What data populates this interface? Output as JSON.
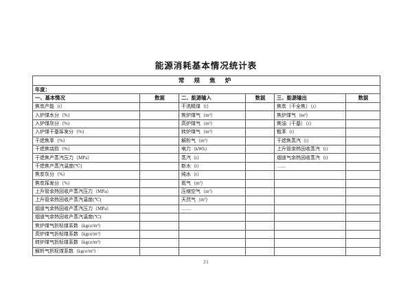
{
  "page": {
    "title": "能源消耗基本情况统计表",
    "page_number": "31"
  },
  "table": {
    "header": "常 规 焦 炉",
    "year_label": "年度：",
    "columns": [
      "一、基本情况",
      "数据",
      "二、能源输入",
      "数据",
      "三、能源输出",
      "数据"
    ],
    "rows": [
      [
        "焦炭产能（t）",
        "",
        "干洗精煤（t）",
        "",
        "焦炭（干全焦）（t）",
        ""
      ],
      [
        "入炉煤水分（%）",
        "",
        "焦炉煤气（m³）",
        "",
        "焦炉煤气（m³）",
        ""
      ],
      [
        "入炉煤灰分（%）",
        "",
        "高炉煤气（m³）",
        "",
        "焦油（干基）（t）",
        ""
      ],
      [
        "入炉煤干基挥发分（%）",
        "",
        "转炉煤气（m³）",
        "",
        "粗苯（t）",
        ""
      ],
      [
        "干熄焦率（%）",
        "",
        "解析气（m³）",
        "",
        "干熄焦蒸汽（t）",
        ""
      ],
      [
        "干熄焦烧损（%）",
        "",
        "电力（kWh）",
        "",
        "上升管余热回收蒸汽（t）",
        ""
      ],
      [
        "干熄焦产蒸汽压力（MPa）",
        "",
        "蒸汽（t）",
        "",
        "烟道气余热回收蒸汽（t）",
        ""
      ],
      [
        "干熄焦产蒸汽温度(℃)",
        "",
        "新水（t）",
        "",
        "……",
        ""
      ],
      [
        "焦炭灰分（%）",
        "",
        "纯水（t）",
        "",
        "",
        ""
      ],
      [
        "焦炭挥发分（%）",
        "",
        "氮气（m³）",
        "",
        "",
        ""
      ],
      [
        "上升管余热回收产蒸汽压力（MPa）",
        "",
        "压缩空气（m³）",
        "",
        "",
        ""
      ],
      [
        "上升管余热回收产蒸汽温度(℃)",
        "",
        "天然气（m³）",
        "",
        "",
        ""
      ],
      [
        "烟道气余热回收产蒸汽压力（MPa）",
        "",
        "……",
        "",
        "",
        ""
      ],
      [
        "烟道气余热回收产蒸汽温度(℃)",
        "",
        "",
        "",
        "",
        ""
      ],
      [
        "焦炉煤气折标煤系数（kgce/m³）",
        "",
        "",
        "",
        "",
        ""
      ],
      [
        "高炉煤气折标煤系数（kgce/m³）",
        "",
        "",
        "",
        "",
        ""
      ],
      [
        "转炉煤气折标煤系数（kgce/m³）",
        "",
        "",
        "",
        "",
        ""
      ],
      [
        "解析气折标煤系数（kgce/m³）",
        "",
        "",
        "",
        "",
        ""
      ]
    ]
  }
}
